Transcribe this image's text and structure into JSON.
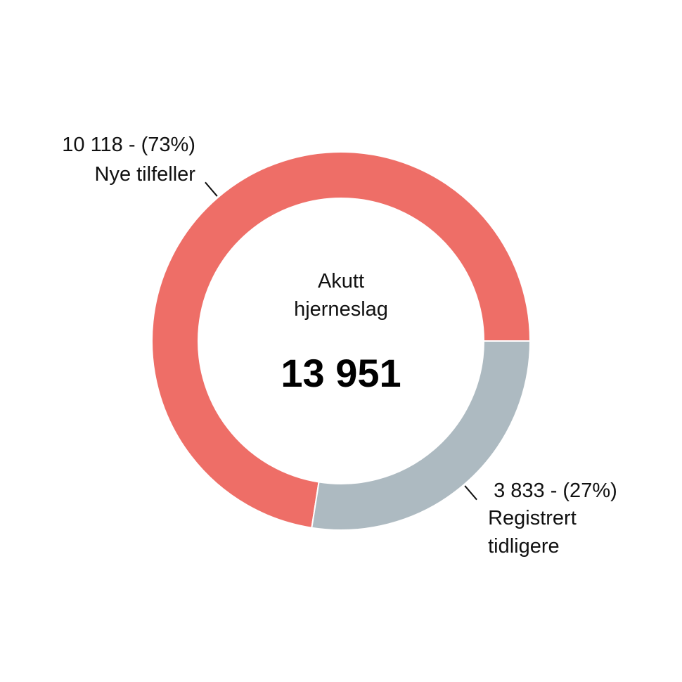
{
  "chart_data": {
    "type": "donut",
    "center_label": "Akutt hjerneslag",
    "total": {
      "value": 13951,
      "label": "13 951"
    },
    "categories": [
      "Nye tilfeller",
      "Registrert tidligere"
    ],
    "values": [
      10118,
      3833
    ],
    "value_labels": [
      "10 118 - (73%)",
      "3 833 - (27%)"
    ],
    "colors": [
      "#ee6e67",
      "#adbac1"
    ]
  }
}
